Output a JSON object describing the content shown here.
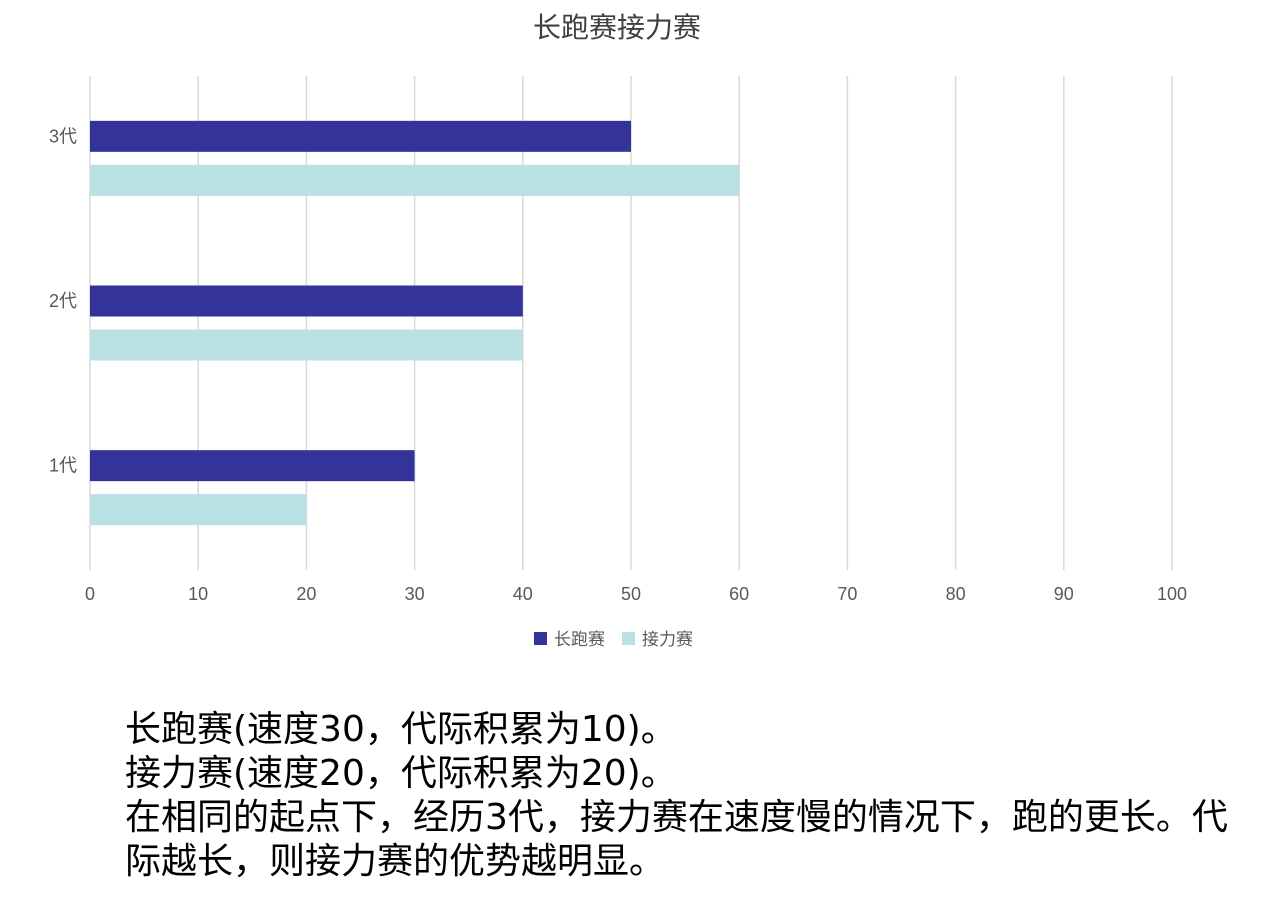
{
  "chart_data": {
    "type": "bar",
    "orientation": "horizontal",
    "title": "长跑赛接力赛",
    "categories": [
      "1代",
      "2代",
      "3代"
    ],
    "series": [
      {
        "name": "长跑赛",
        "values": [
          30,
          40,
          50
        ],
        "color": "#333399"
      },
      {
        "name": "接力赛",
        "values": [
          20,
          40,
          60
        ],
        "color": "#b9e0e3"
      }
    ],
    "xlim": [
      0,
      100
    ],
    "xticks": [
      "0",
      "10",
      "20",
      "30",
      "40",
      "50",
      "60",
      "70",
      "80",
      "90",
      "100"
    ],
    "grid": "vertical",
    "legend_position": "bottom",
    "xlabel": "",
    "ylabel": ""
  },
  "caption": {
    "lines": [
      "长跑赛(速度30，代际积累为10)。",
      "接力赛(速度20，代际积累为20)。",
      "在相同的起点下，经历3代，接力赛在速度慢的情况下，跑的更长。代际越长，则接力赛的优势越明显。"
    ]
  }
}
